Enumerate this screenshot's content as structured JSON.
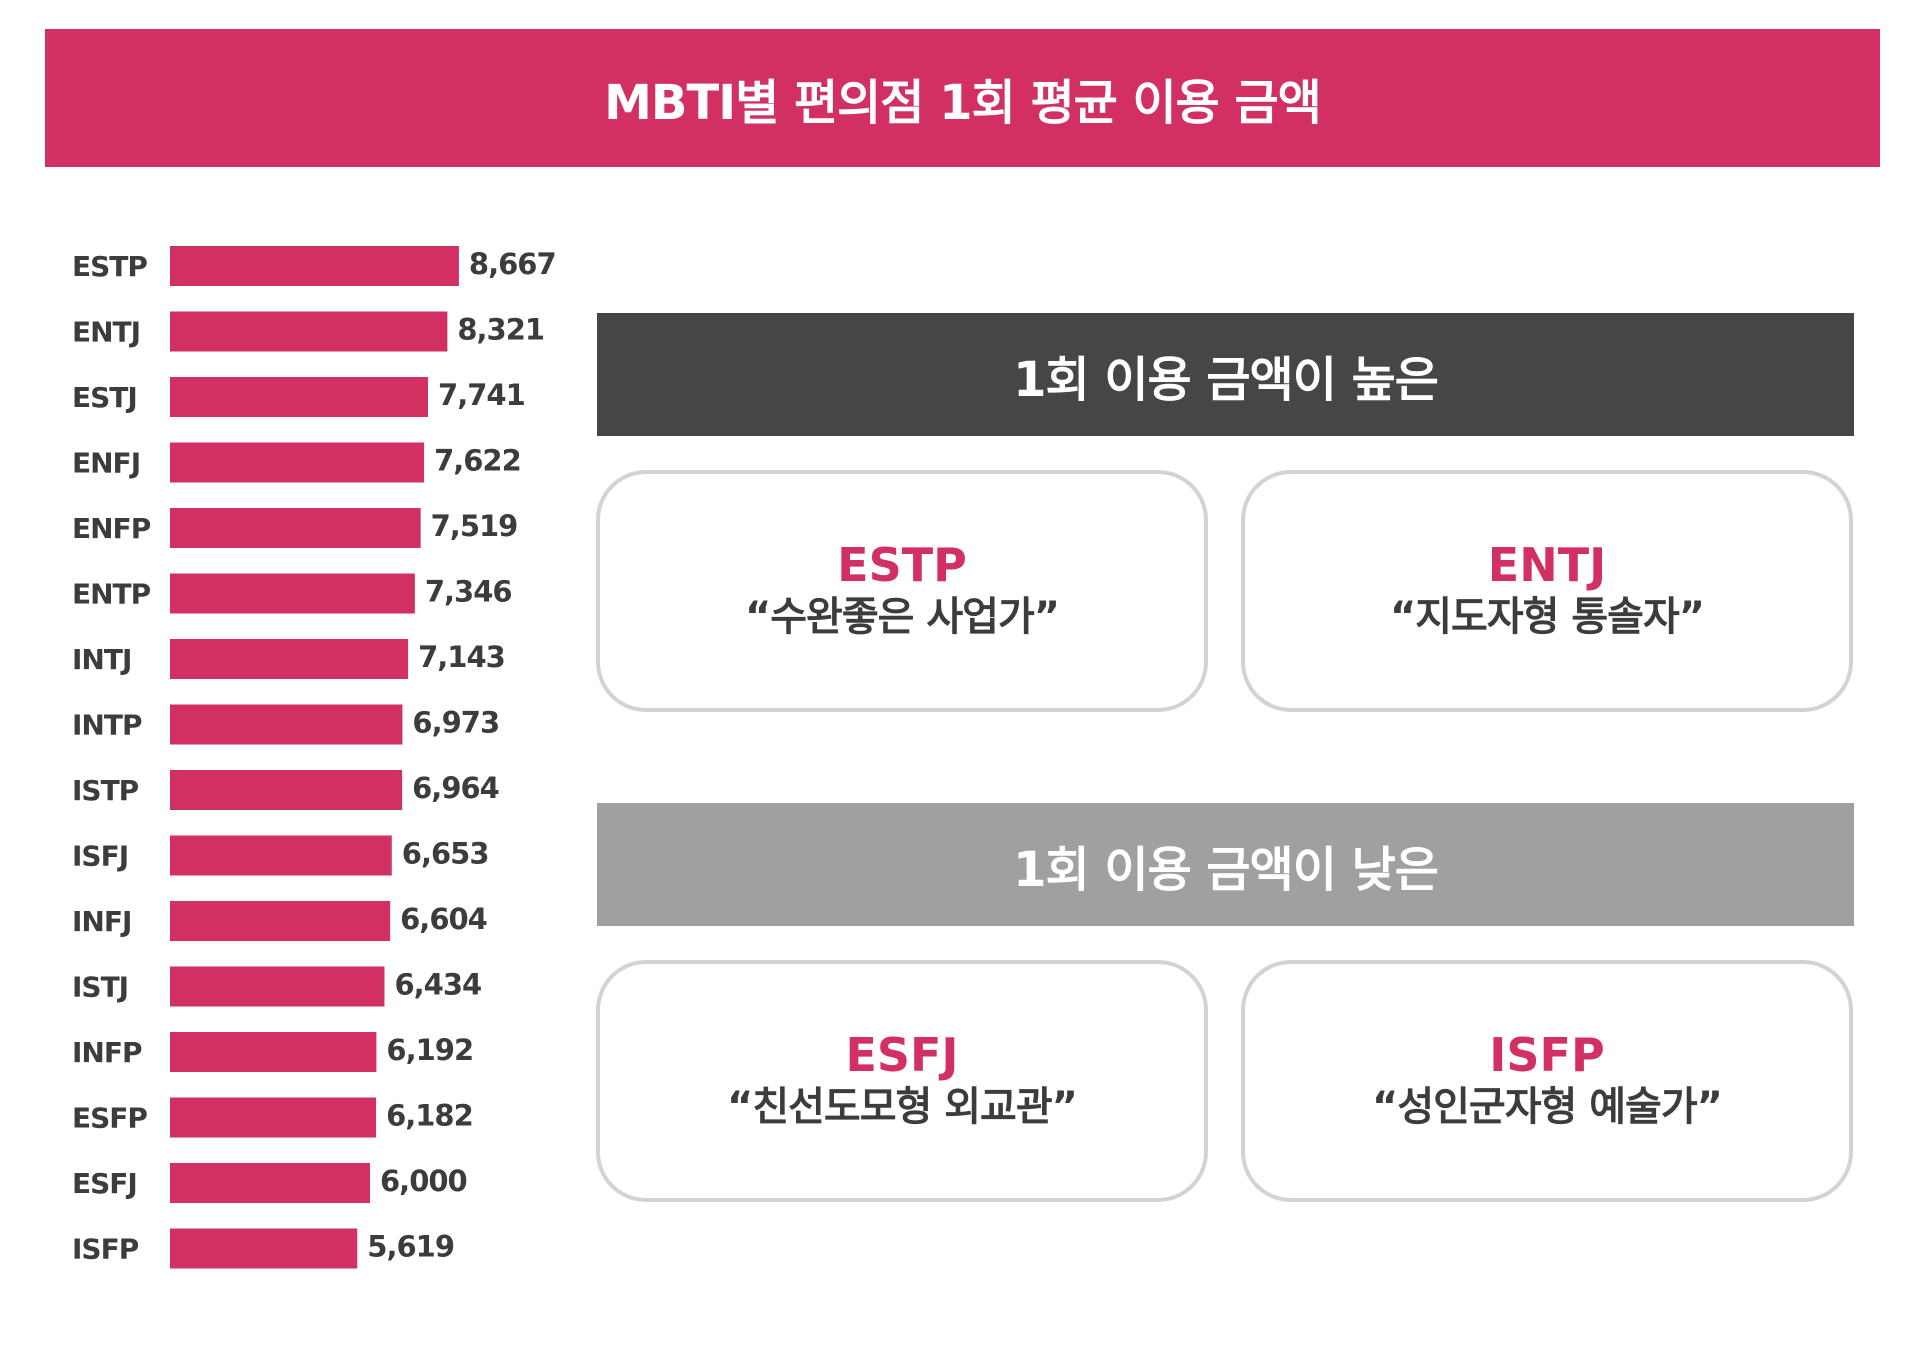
{
  "title": "MBTI별 편의점 1회 평균 이용 금액",
  "colors": {
    "accent": "#d22f63",
    "dark_header": "#464646",
    "light_header": "#a0a0a0",
    "text": "#3c3c3c",
    "card_border": "#d3d3d3"
  },
  "chart_data": {
    "type": "bar",
    "orientation": "horizontal",
    "title": "MBTI별 편의점 1회 평균 이용 금액",
    "categories": [
      "ESTP",
      "ENTJ",
      "ESTJ",
      "ENFJ",
      "ENFP",
      "ENTP",
      "INTJ",
      "INTP",
      "ISTP",
      "ISFJ",
      "INFJ",
      "ISTJ",
      "INFP",
      "ESFP",
      "ESFJ",
      "ISFP"
    ],
    "values": [
      8667,
      8321,
      7741,
      7622,
      7519,
      7346,
      7143,
      6973,
      6964,
      6653,
      6604,
      6434,
      6192,
      6182,
      6000,
      5619
    ],
    "value_labels": [
      "8,667",
      "8,321",
      "7,741",
      "7,622",
      "7,519",
      "7,346",
      "7,143",
      "6,973",
      "6,964",
      "6,653",
      "6,604",
      "6,434",
      "6,192",
      "6,182",
      "6,000",
      "5,619"
    ],
    "xlim": [
      0,
      9300
    ],
    "xlabel": "",
    "ylabel": ""
  },
  "high_section": {
    "header": "1회 이용 금액이 높은",
    "cards": [
      {
        "type": "ESTP",
        "nickname": "“수완좋은 사업가”"
      },
      {
        "type": "ENTJ",
        "nickname": "“지도자형 통솔자”"
      }
    ]
  },
  "low_section": {
    "header": "1회 이용 금액이 낮은",
    "cards": [
      {
        "type": "ESFJ",
        "nickname": "“친선도모형 외교관”"
      },
      {
        "type": "ISFP",
        "nickname": "“성인군자형 예술가”"
      }
    ]
  }
}
